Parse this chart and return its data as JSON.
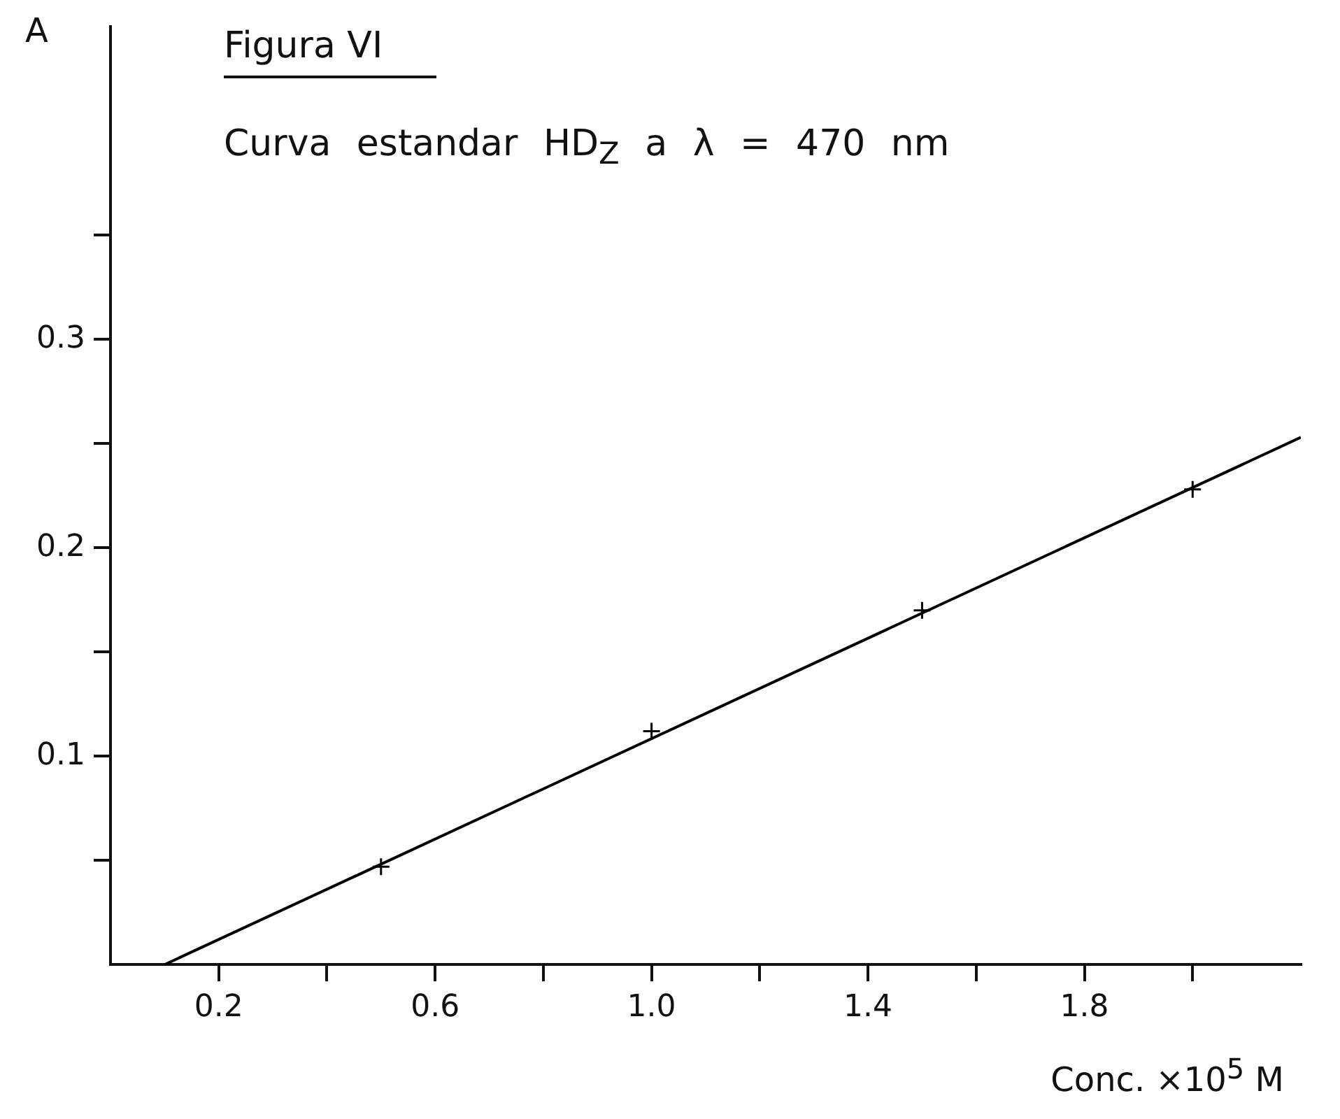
{
  "chart_data": {
    "type": "scatter",
    "title": "Figura VI",
    "subtitle": "Curva estandar HD$_{Z}$  a  λ = 470 nm",
    "xlabel": "Conc. ×10$^{5}$ M",
    "ylabel": "A",
    "x": [
      0.5,
      1.0,
      1.5,
      2.0
    ],
    "series": [
      {
        "type": "scatter",
        "color": "#000000",
        "marker": "cross",
        "values": [
          0.047,
          0.112,
          0.17,
          0.228
        ]
      },
      {
        "type": "line",
        "color": "#000000",
        "x": [
          0.1,
          2.2
        ],
        "values": [
          0.0,
          0.253
        ]
      }
    ],
    "grid": false,
    "legend": false,
    "xlim": [
      0,
      2.2
    ],
    "xticks": [
      {
        "value": 0.2,
        "label": "0.2"
      },
      {
        "value": 0.4,
        "label": null
      },
      {
        "value": 0.6,
        "label": "0.6"
      },
      {
        "value": 0.8,
        "label": null
      },
      {
        "value": 1.0,
        "label": "1.0"
      },
      {
        "value": 1.2,
        "label": null
      },
      {
        "value": 1.4,
        "label": "1.4"
      },
      {
        "value": 1.6,
        "label": null
      },
      {
        "value": 1.8,
        "label": "1.8"
      },
      {
        "value": 2.0,
        "label": null
      }
    ],
    "ylim": [
      0,
      0.45
    ],
    "yticks": [
      {
        "value": 0.05,
        "label": null
      },
      {
        "value": 0.1,
        "label": "0.1"
      },
      {
        "value": 0.15,
        "label": null
      },
      {
        "value": 0.2,
        "label": "0.2"
      },
      {
        "value": 0.25,
        "label": null
      },
      {
        "value": 0.3,
        "label": "0.3"
      },
      {
        "value": 0.35,
        "label": null
      }
    ]
  }
}
